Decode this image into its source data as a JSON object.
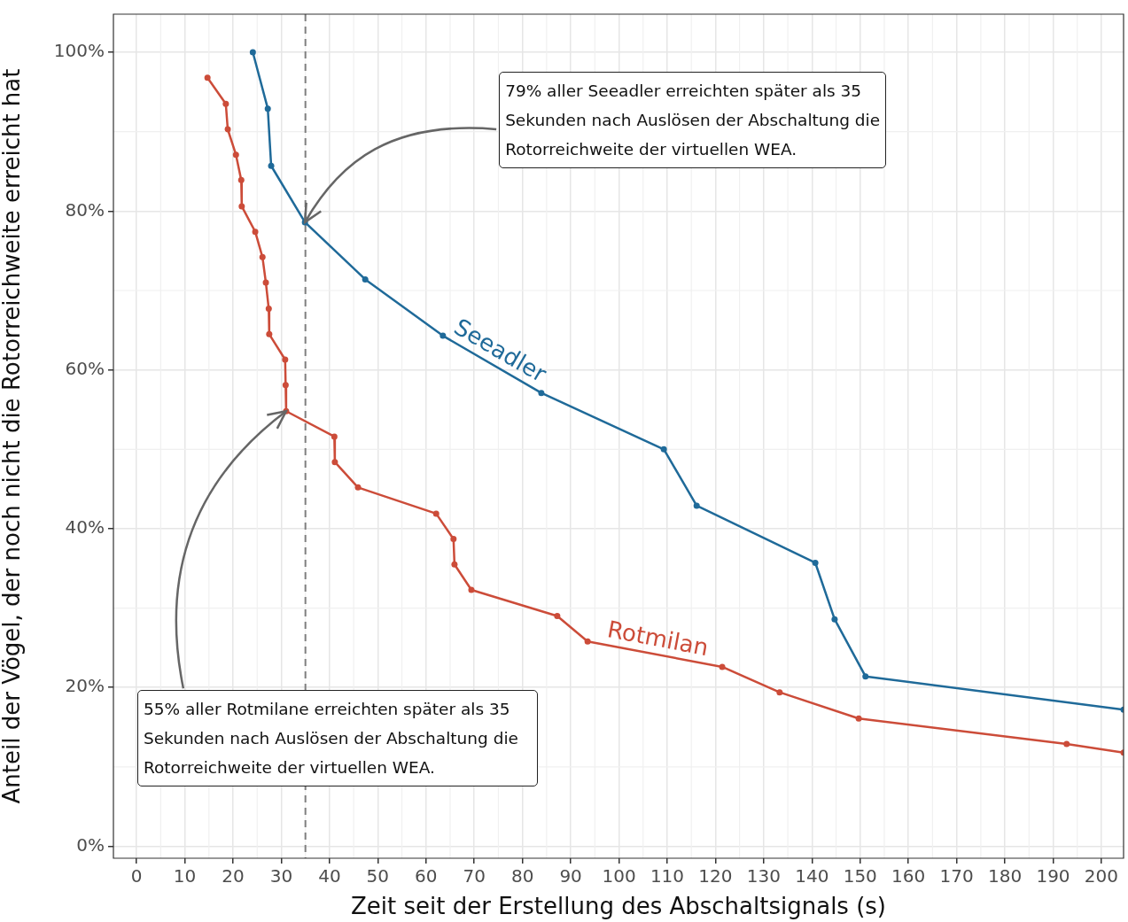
{
  "chart_data": {
    "type": "line",
    "xlabel": "Zeit seit der Erstellung des Abschaltsignals (s)",
    "ylabel": "Anteil der Vögel, der noch nicht die Rotorreichweite erreicht hat",
    "xlim": [
      -4.8,
      204.6
    ],
    "ylim": [
      -1.5,
      104.8
    ],
    "xticks": [
      0,
      10,
      20,
      30,
      40,
      50,
      60,
      70,
      80,
      90,
      100,
      110,
      120,
      130,
      140,
      150,
      160,
      170,
      180,
      190,
      200
    ],
    "yticks": [
      {
        "value": 0,
        "label": "0%"
      },
      {
        "value": 20,
        "label": "20%"
      },
      {
        "value": 40,
        "label": "40%"
      },
      {
        "value": 60,
        "label": "60%"
      },
      {
        "value": 80,
        "label": "80%"
      },
      {
        "value": 100,
        "label": "100%"
      }
    ],
    "grid": true,
    "legend": false,
    "marker": "circle",
    "line_style": "solid",
    "series": [
      {
        "name": "Seeadler",
        "color": "#1f6a99",
        "x": [
          24.1,
          27.2,
          27.9,
          34.9,
          47.4,
          63.5,
          83.9,
          109.3,
          116.1,
          140.7,
          144.7,
          151.1,
          204.6
        ],
        "values": [
          100,
          92.9,
          85.7,
          78.6,
          71.4,
          64.3,
          57.1,
          50,
          42.9,
          35.7,
          28.6,
          21.4,
          17.2
        ]
      },
      {
        "name": "Rotmilan",
        "color": "#cc4c39",
        "x": [
          14.7,
          18.5,
          18.9,
          20.6,
          21.7,
          21.8,
          24.6,
          26.1,
          26.8,
          27.4,
          27.5,
          30.8,
          30.9,
          31,
          41,
          41.1,
          45.9,
          62.1,
          65.7,
          65.9,
          69.4,
          87.2,
          93.5,
          121.4,
          133.3,
          149.7,
          192.8,
          204.6
        ],
        "values": [
          96.8,
          93.5,
          90.3,
          87.1,
          83.9,
          80.6,
          77.4,
          74.2,
          71,
          67.7,
          64.5,
          61.3,
          58.1,
          54.8,
          51.6,
          48.4,
          45.2,
          41.9,
          38.7,
          35.5,
          32.3,
          29,
          25.8,
          22.6,
          19.4,
          16.1,
          12.9,
          11.8
        ]
      }
    ],
    "ref_lines": [
      {
        "axis": "x",
        "value": 35,
        "color": "#7f7f7f",
        "line_style": "dashed"
      }
    ],
    "annotations": [
      {
        "text": "79% aller Seeadler erreichten später als 35 Sekunden nach Auslösen der Abschaltung die Rotorreichweite der virtuellen WEA.",
        "x": 34.9,
        "y": 78.6
      },
      {
        "text": "55% aller Rotmilane erreichten später als 35 Sekunden nach Auslösen der Abschaltung die Rotorreichweite der virtuellen WEA.",
        "x": 31,
        "y": 54.8
      }
    ]
  }
}
